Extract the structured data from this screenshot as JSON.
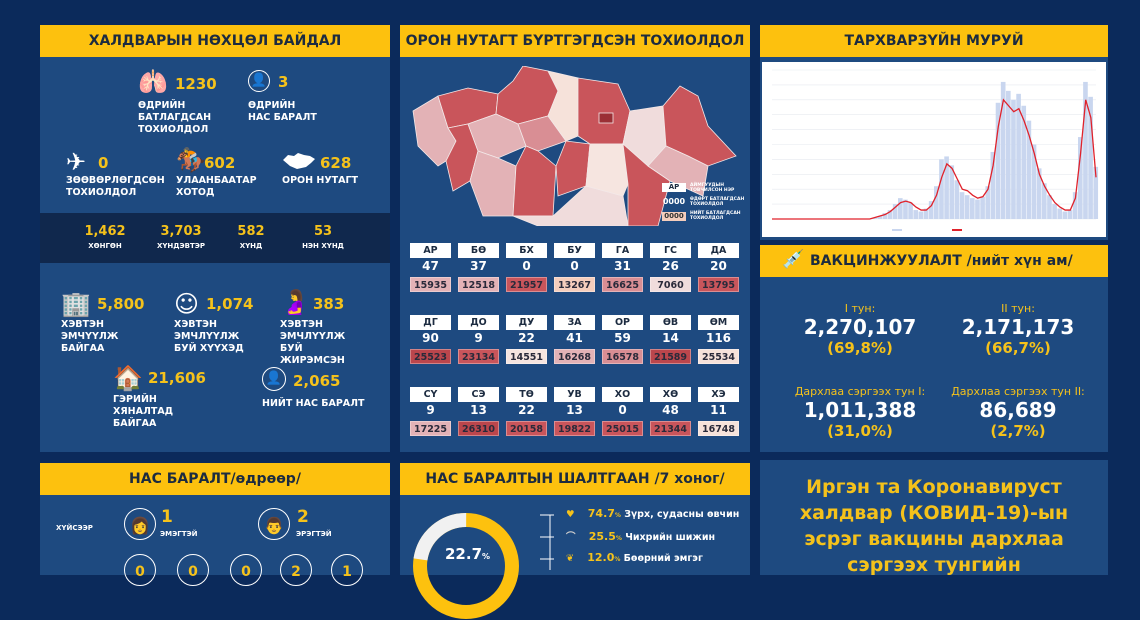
{
  "situation": {
    "title": "ХАЛДВАРЫН НӨХЦӨЛ БАЙДАЛ",
    "stats": [
      {
        "icon": "lungs-virus-icon",
        "value": "1230",
        "label": "ӨДРИЙН БАТЛАГДСАН ТОХИОЛДОЛ"
      },
      {
        "icon": "person-minus-icon",
        "value": "3",
        "label": "ӨДРИЙН НАС БАРАЛТ"
      },
      {
        "icon": "airplane-icon",
        "value": "0",
        "label": "ЗӨӨВӨРЛӨГДСӨН ТОХИОЛДОЛ"
      },
      {
        "icon": "statue-icon",
        "value": "602",
        "label": "УЛААНБААТАР ХОТОД"
      },
      {
        "icon": "mongolia-map-icon",
        "value": "628",
        "label": "ОРОН НУТАГТ"
      }
    ],
    "severity": [
      {
        "value": "1,462",
        "label": "ХӨНГӨН"
      },
      {
        "value": "3,703",
        "label": "ХҮНДЭВТЭР"
      },
      {
        "value": "582",
        "label": "ХҮНД"
      },
      {
        "value": "53",
        "label": "НЭН ХҮНД"
      }
    ],
    "care": [
      {
        "icon": "hospital-icon",
        "value": "5,800",
        "label": "ХЭВТЭН ЭМЧҮҮЛЖ БАЙГАА"
      },
      {
        "icon": "baby-icon",
        "value": "1,074",
        "label": "ХЭВТЭН ЭМЧЛҮҮЛЖ БУЙ ХҮҮХЭД"
      },
      {
        "icon": "pregnant-icon",
        "value": "383",
        "label": "ХЭВТЭН ЭМЧЛҮҮЛЖ БУЙ ЖИРЭМСЭН"
      },
      {
        "icon": "home-icon",
        "value": "21,606",
        "label": "ГЭРИЙН ХЯНАЛТАД БАЙГАА"
      },
      {
        "icon": "person-minus-icon",
        "value": "2,065",
        "label": "НИЙТ НАС БАРАЛТ"
      }
    ]
  },
  "regional": {
    "title": "ОРОН НУТАГТ БҮРТГЭГДСЭН ТОХИОЛДОЛ",
    "legend": {
      "code_box": "АР",
      "code_text": "АЙМГУУДЫН ТОВЧИЛСОН НЭР",
      "daily_box": "0000",
      "daily_text": "ӨДӨРТ БАТЛАГДСАН ТОХИОЛДОЛ",
      "total_box": "0000",
      "total_text": "НИЙТ БАТЛАГДСАН ТОХИОЛДОЛ"
    },
    "provinces": [
      {
        "code": "АР",
        "daily": "47",
        "total": "15935",
        "color": "#e3b2b6"
      },
      {
        "code": "БӨ",
        "daily": "37",
        "total": "12518",
        "color": "#e3b2b6"
      },
      {
        "code": "БХ",
        "daily": "0",
        "total": "21957",
        "color": "#c9555b"
      },
      {
        "code": "БУ",
        "daily": "0",
        "total": "13267",
        "color": "#f4cdbc"
      },
      {
        "code": "ГА",
        "daily": "31",
        "total": "16625",
        "color": "#d98e94"
      },
      {
        "code": "ГС",
        "daily": "26",
        "total": "7060",
        "color": "#f0dcdc"
      },
      {
        "code": "ДА",
        "daily": "20",
        "total": "13795",
        "color": "#c9555b"
      },
      {
        "code": "ДГ",
        "daily": "90",
        "total": "25523",
        "color": "#bb464c"
      },
      {
        "code": "ДО",
        "daily": "9",
        "total": "23134",
        "color": "#c9555b"
      },
      {
        "code": "ДУ",
        "daily": "22",
        "total": "14551",
        "color": "#f6e5e0"
      },
      {
        "code": "ЗА",
        "daily": "41",
        "total": "16268",
        "color": "#e3b2b6"
      },
      {
        "code": "ОР",
        "daily": "59",
        "total": "16578",
        "color": "#d98e94"
      },
      {
        "code": "ӨВ",
        "daily": "14",
        "total": "21589",
        "color": "#bb464c"
      },
      {
        "code": "ӨМ",
        "daily": "116",
        "total": "25534",
        "color": "#f6e2da"
      },
      {
        "code": "СҮ",
        "daily": "9",
        "total": "17225",
        "color": "#e3b2b6"
      },
      {
        "code": "СЭ",
        "daily": "13",
        "total": "26310",
        "color": "#bb464c"
      },
      {
        "code": "ТӨ",
        "daily": "22",
        "total": "20158",
        "color": "#c9555b"
      },
      {
        "code": "УВ",
        "daily": "13",
        "total": "19822",
        "color": "#c9555b"
      },
      {
        "code": "ХО",
        "daily": "0",
        "total": "25015",
        "color": "#c9555b"
      },
      {
        "code": "ХӨ",
        "daily": "48",
        "total": "21344",
        "color": "#c9555b"
      },
      {
        "code": "ХЭ",
        "daily": "11",
        "total": "16748",
        "color": "#f6e2da"
      }
    ]
  },
  "curve": {
    "title": "ТАРХВАРЗҮЙН МУРУЙ"
  },
  "chart_data": {
    "type": "area",
    "title": "",
    "xlabel": "",
    "ylabel": "",
    "grid": true,
    "legend": "bottom",
    "series": [
      {
        "kind": "bars",
        "values": [
          0,
          0,
          0,
          0,
          0,
          0,
          0,
          0,
          0,
          0,
          0,
          0,
          0,
          0,
          0,
          0,
          0,
          0,
          0,
          0,
          1,
          2,
          4,
          6,
          10,
          14,
          13,
          11,
          6,
          5,
          7,
          12,
          22,
          40,
          42,
          36,
          26,
          18,
          16,
          14,
          13,
          15,
          22,
          45,
          78,
          92,
          86,
          80,
          84,
          76,
          66,
          50,
          34,
          24,
          16,
          10,
          7,
          5,
          6,
          18,
          55,
          92,
          82,
          35
        ]
      },
      {
        "kind": "line",
        "values": [
          0,
          0,
          0,
          0,
          0,
          0,
          0,
          0,
          0,
          0,
          0,
          0,
          0,
          0,
          0,
          0,
          0,
          0,
          0,
          0,
          1,
          2,
          3,
          5,
          8,
          11,
          12,
          11,
          8,
          6,
          6,
          9,
          16,
          28,
          37,
          34,
          27,
          20,
          19,
          16,
          14,
          15,
          20,
          36,
          62,
          80,
          76,
          72,
          74,
          66,
          56,
          44,
          30,
          22,
          16,
          11,
          8,
          6,
          6,
          14,
          44,
          80,
          68,
          28
        ]
      }
    ]
  },
  "vaccine": {
    "title": "ВАКЦИНЖУУЛАЛТ /нийт хүн ам/",
    "doses": [
      {
        "label": "I тун:",
        "value": "2,270,107",
        "percent": "(69,8%)"
      },
      {
        "label": "II тун:",
        "value": "2,171,173",
        "percent": "(66,7%)"
      },
      {
        "label": "Дархлаа сэргээх тун I:",
        "value": "1,011,388",
        "percent": "(31,0%)"
      },
      {
        "label": "Дархлаа сэргээх тун II:",
        "value": "86,689",
        "percent": "(2,7%)"
      }
    ]
  },
  "deaths": {
    "title": "НАС БАРАЛТ/өдрөөр/",
    "by_sex_label": "ХҮЙСЭЭР",
    "female": {
      "value": "1",
      "label": "ЭМЭГТЭЙ"
    },
    "male": {
      "value": "2",
      "label": "ЭРЭГТЭЙ"
    },
    "age_groups": [
      "0",
      "0",
      "0",
      "2",
      "1"
    ]
  },
  "causes": {
    "title": "НАС БАРАЛТЫН ШАЛТГААН /7 хоног/",
    "donut_value": "22.7",
    "donut_unit": "%",
    "donut_fraction": 0.227,
    "items": [
      {
        "icon": "heart-icon",
        "value": "74.7",
        "unit": "%",
        "label": "Зүрх, судасны өвчин"
      },
      {
        "icon": "pancreas-icon",
        "value": "25.5",
        "unit": "%",
        "label": "Чихрийн шижин"
      },
      {
        "icon": "kidney-icon",
        "value": "12.0",
        "unit": "%",
        "label": "Бөөрний эмгэг"
      }
    ]
  },
  "notice": {
    "text": "Иргэн та Коронавируст халдвар (КОВИД-19)-ын эсрэг вакцины дархлаа сэргээх тунгийн"
  },
  "colors": {
    "background": "#0b2a5b",
    "panel": "#1e4a80",
    "accent": "#fdc10e",
    "line": "#e0222b",
    "bars": "#c9d6ef"
  }
}
